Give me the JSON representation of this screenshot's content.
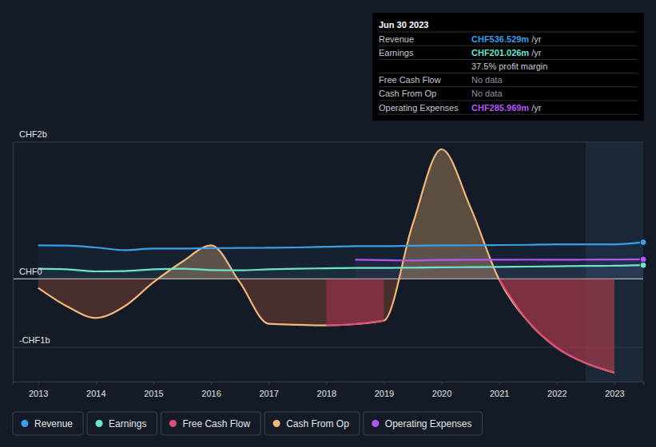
{
  "chart_data": {
    "type": "line",
    "x": [
      2013,
      2013.5,
      2014,
      2014.5,
      2015,
      2015.5,
      2016,
      2016.5,
      2017,
      2017.5,
      2018,
      2018.5,
      2019,
      2019.5,
      2020,
      2020.5,
      2021,
      2021.5,
      2022,
      2022.5,
      2023,
      2023.5
    ],
    "xlim": [
      2012.56,
      2023.5
    ],
    "xticks": [
      2013,
      2014,
      2015,
      2016,
      2017,
      2018,
      2019,
      2020,
      2021,
      2022,
      2023
    ],
    "ylim": [
      -1500,
      2000
    ],
    "yticks": [
      {
        "value": -1000,
        "label": "-CHF1b"
      },
      {
        "value": 0,
        "label": "CHF0"
      },
      {
        "value": 2000,
        "label": "CHF2b"
      }
    ],
    "grid": true,
    "legend": "bottom-left",
    "series": [
      {
        "name": "Revenue",
        "color": "#3a9ee8",
        "type": "line",
        "values": [
          490,
          488,
          460,
          420,
          445,
          445,
          450,
          452,
          455,
          460,
          470,
          480,
          480,
          485,
          490,
          492,
          495,
          498,
          505,
          505,
          505,
          536.529
        ]
      },
      {
        "name": "Earnings",
        "color": "#6de3cc",
        "type": "line",
        "values": [
          150,
          140,
          110,
          115,
          140,
          150,
          130,
          125,
          140,
          150,
          155,
          160,
          160,
          165,
          170,
          172,
          175,
          180,
          185,
          190,
          192,
          201.026
        ]
      },
      {
        "name": "Free Cash Flow",
        "color": "#d9507a",
        "type": "area",
        "values": [
          null,
          null,
          null,
          null,
          null,
          null,
          null,
          null,
          null,
          null,
          -680,
          -660,
          -610,
          null,
          null,
          null,
          -10,
          -620,
          -1005,
          -1230,
          -1370,
          null
        ]
      },
      {
        "name": "Cash From Op",
        "color": "#f2b77c",
        "type": "area",
        "values": [
          -130,
          -400,
          -570,
          -400,
          -50,
          250,
          490,
          -50,
          -655,
          -670,
          -680,
          -660,
          -610,
          800,
          1895,
          1050,
          -10,
          -620,
          -1005,
          -1230,
          -1370,
          null
        ]
      },
      {
        "name": "Operating Expenses",
        "color": "#b457f2",
        "type": "line",
        "values": [
          null,
          null,
          null,
          null,
          null,
          null,
          null,
          null,
          null,
          null,
          null,
          280,
          275,
          270,
          278,
          280,
          280,
          282,
          280,
          282,
          283,
          285.969
        ]
      }
    ],
    "annotations": {
      "date": "Jun 30 2023",
      "rows": [
        {
          "label": "Revenue",
          "value": "CHF536.529m",
          "unit": "/yr"
        },
        {
          "label": "Earnings",
          "value": "CHF201.026m",
          "unit": "/yr"
        },
        {
          "value": "37.5% profit margin"
        },
        {
          "label": "Free Cash Flow",
          "value": "No data"
        },
        {
          "label": "Cash From Op",
          "value": "No data"
        },
        {
          "label": "Operating Expenses",
          "value": "CHF285.969m",
          "unit": "/yr"
        }
      ]
    }
  }
}
